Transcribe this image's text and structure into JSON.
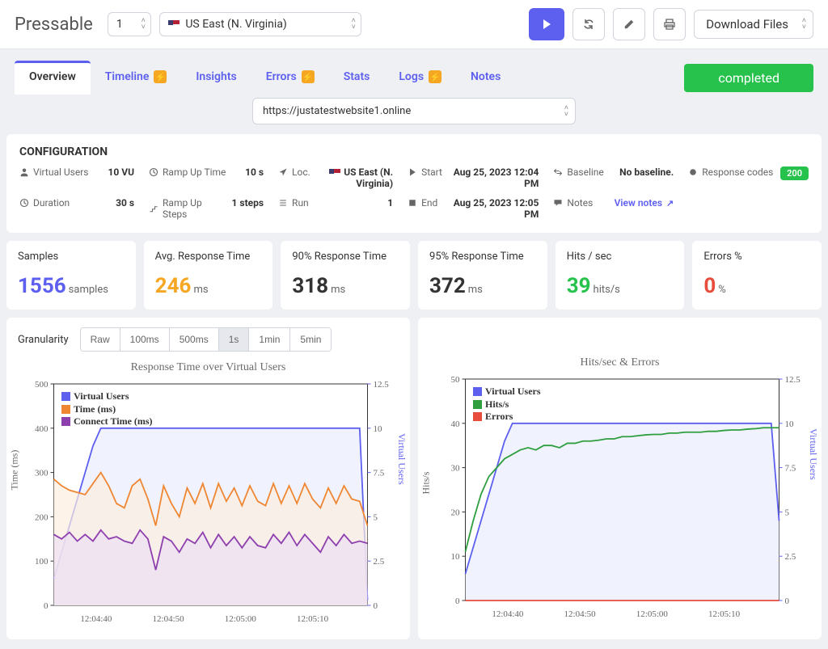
{
  "topbar": {
    "brand": "Pressable",
    "count": "1",
    "region": "US East (N. Virginia)",
    "download": "Download Files"
  },
  "tabs": {
    "items": [
      "Overview",
      "Timeline",
      "Insights",
      "Errors",
      "Stats",
      "Logs",
      "Notes"
    ],
    "status": "completed"
  },
  "url": "https://justatestwebsite1.online",
  "config": {
    "title": "CONFIGURATION",
    "vu_label": "Virtual Users",
    "vu_val": "10 VU",
    "dur_label": "Duration",
    "dur_val": "30 s",
    "ramp_label": "Ramp Up Time",
    "ramp_val": "10 s",
    "steps_label": "Ramp Up Steps",
    "steps_val": "1 steps",
    "loc_label": "Loc.",
    "loc_val": "US East (N. Virginia)",
    "run_label": "Run",
    "run_val": "1",
    "start_label": "Start",
    "start_val": "Aug 25, 2023 12:04 PM",
    "end_label": "End",
    "end_val": "Aug 25, 2023 12:05 PM",
    "baseline_label": "Baseline",
    "baseline_val": "No baseline.",
    "notes_label": "Notes",
    "notes_val": "View notes",
    "resp_label": "Response codes",
    "resp_val": "200"
  },
  "cards": {
    "samples": {
      "title": "Samples",
      "val": "1556",
      "unit": "samples",
      "color": "#5d5fef"
    },
    "avg": {
      "title": "Avg. Response Time",
      "val": "246",
      "unit": "ms",
      "color": "#f5a623"
    },
    "p90": {
      "title": "90% Response Time",
      "val": "318",
      "unit": "ms",
      "color": "#333"
    },
    "p95": {
      "title": "95% Response Time",
      "val": "372",
      "unit": "ms",
      "color": "#333"
    },
    "hits": {
      "title": "Hits / sec",
      "val": "39",
      "unit": "hits/s",
      "color": "#27c24c"
    },
    "errors": {
      "title": "Errors %",
      "val": "0",
      "unit": "%",
      "color": "#e74c3c"
    }
  },
  "granularity": {
    "label": "Granularity",
    "options": [
      "Raw",
      "100ms",
      "500ms",
      "1s",
      "1min",
      "5min"
    ],
    "active": "1s"
  },
  "chart1": {
    "title": "Response Time over Virtual Users",
    "y_left_label": "Time (ms)",
    "y_right_label": "Virtual Users",
    "y_left_ticks": [
      0,
      100,
      200,
      300,
      400,
      500
    ],
    "y_right_ticks": [
      0,
      2.5,
      5,
      7.5,
      10,
      12.5
    ],
    "x_ticks": [
      "12:04:40",
      "12:04:50",
      "12:05:00",
      "12:05:10"
    ],
    "legend": [
      {
        "label": "Virtual Users",
        "color": "#5d5fef"
      },
      {
        "label": "Time (ms)",
        "color": "#ef8632"
      },
      {
        "label": "Connect Time (ms)",
        "color": "#8e3fae"
      }
    ],
    "colors": {
      "vu": "#5d5fef",
      "time": "#ef8632",
      "connect": "#8e3fae",
      "vu_fill": "#e9ecfd",
      "time_fill": "#fceedf",
      "connect_fill": "#ece0f2"
    },
    "vu_data": [
      1.5,
      3,
      4.5,
      6,
      7.5,
      9,
      10,
      10,
      10,
      10,
      10,
      10,
      10,
      10,
      10,
      10,
      10,
      10,
      10,
      10,
      10,
      10,
      10,
      10,
      10,
      10,
      10,
      10,
      10,
      10,
      10,
      10,
      10,
      10,
      10,
      10,
      10,
      10,
      10,
      10,
      0.3
    ],
    "time_data": [
      285,
      270,
      260,
      255,
      250,
      275,
      300,
      270,
      230,
      220,
      270,
      285,
      240,
      180,
      270,
      230,
      200,
      265,
      230,
      275,
      220,
      275,
      235,
      265,
      225,
      270,
      235,
      225,
      275,
      230,
      270,
      230,
      275,
      240,
      220,
      265,
      230,
      270,
      240,
      235,
      180
    ],
    "connect_data": [
      160,
      150,
      165,
      145,
      160,
      145,
      170,
      150,
      155,
      145,
      140,
      170,
      150,
      80,
      155,
      145,
      120,
      150,
      140,
      165,
      130,
      160,
      135,
      155,
      130,
      155,
      135,
      130,
      160,
      140,
      165,
      135,
      160,
      140,
      120,
      155,
      135,
      160,
      140,
      145,
      140
    ]
  },
  "chart2": {
    "title": "Hits/sec & Errors",
    "y_left_label": "Hits/s",
    "y_right_label": "Virtual Users",
    "y_left_ticks": [
      0,
      10,
      20,
      30,
      40,
      50
    ],
    "y_right_ticks": [
      0,
      2.5,
      5,
      7.5,
      10,
      12.5
    ],
    "x_ticks": [
      "12:04:40",
      "12:04:50",
      "12:05:00",
      "12:05:10"
    ],
    "legend": [
      {
        "label": "Virtual Users",
        "color": "#5d5fef"
      },
      {
        "label": "Hits/s",
        "color": "#2e9e3f"
      },
      {
        "label": "Errors",
        "color": "#e74c3c"
      }
    ],
    "colors": {
      "vu": "#5d5fef",
      "hits": "#2e9e3f",
      "errors": "#e74c3c",
      "vu_fill": "#e9ecfd"
    },
    "vu_data": [
      1.5,
      3,
      4.5,
      6,
      7.5,
      9,
      10,
      10,
      10,
      10,
      10,
      10,
      10,
      10,
      10,
      10,
      10,
      10,
      10,
      10,
      10,
      10,
      10,
      10,
      10,
      10,
      10,
      10,
      10,
      10,
      10,
      10,
      10,
      10,
      10,
      10,
      10,
      10,
      10,
      10,
      4.5
    ],
    "hits_data": [
      11,
      18,
      24,
      28,
      30,
      32,
      33,
      34,
      34.5,
      34,
      35,
      35,
      34.5,
      35.5,
      35.5,
      36,
      36,
      36.2,
      36.5,
      36.5,
      37,
      37,
      37.2,
      37.4,
      37.5,
      37.5,
      37.8,
      37.8,
      38,
      38,
      38,
      38.2,
      38.2,
      38.4,
      38.5,
      38.5,
      38.7,
      38.8,
      39,
      39,
      39
    ],
    "errors_data": [
      0,
      0,
      0,
      0,
      0,
      0,
      0,
      0,
      0,
      0,
      0,
      0,
      0,
      0,
      0,
      0,
      0,
      0,
      0,
      0,
      0,
      0,
      0,
      0,
      0,
      0,
      0,
      0,
      0,
      0,
      0,
      0,
      0,
      0,
      0,
      0,
      0,
      0,
      0,
      0,
      0
    ]
  }
}
